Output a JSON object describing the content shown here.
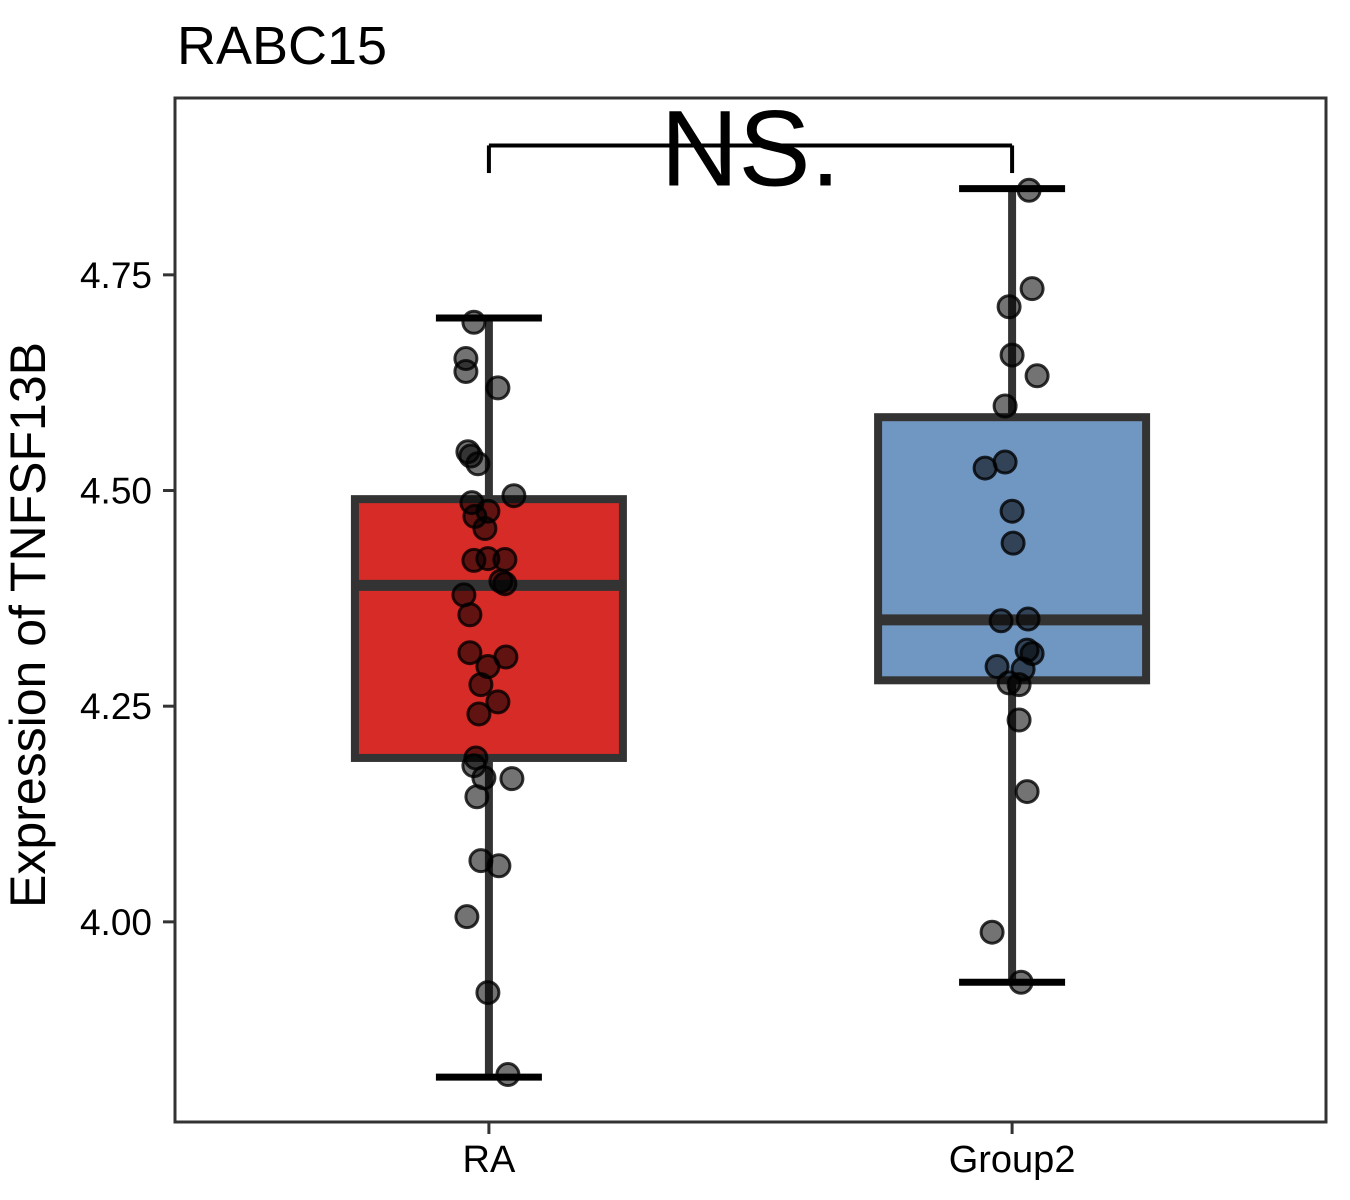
{
  "chart_data": {
    "type": "boxplot",
    "title": "RABC15",
    "ylabel": "Expression of TNFSF13B",
    "xlabel": "",
    "categories": [
      "RA",
      "Group2"
    ],
    "ylim": [
      3.768,
      4.955
    ],
    "grid": false,
    "legend": "none",
    "y_ticks": [
      {
        "value": 4.0,
        "label": "4.00"
      },
      {
        "value": 4.25,
        "label": "4.25"
      },
      {
        "value": 4.5,
        "label": "4.50"
      },
      {
        "value": 4.75,
        "label": "4.75"
      }
    ],
    "annotation": {
      "label": "NS.",
      "bar_value": 4.9,
      "drop_to_value": 4.868,
      "from_category": "RA",
      "to_category": "Group2"
    },
    "groups": [
      {
        "name": "RA",
        "fill": "#D62B27",
        "stats": {
          "whisker_low": 3.82,
          "q1": 4.19,
          "median": 4.39,
          "q3": 4.49,
          "whisker_high": 4.7
        },
        "points": [
          [
            -15,
            4.695
          ],
          [
            -23,
            4.653
          ],
          [
            -23,
            4.638
          ],
          [
            9,
            4.619
          ],
          [
            -21,
            4.545
          ],
          [
            -18,
            4.54
          ],
          [
            -11,
            4.531
          ],
          [
            25,
            4.494
          ],
          [
            -17,
            4.486
          ],
          [
            -1,
            4.476
          ],
          [
            -14,
            4.47
          ],
          [
            -4,
            4.456
          ],
          [
            -1,
            4.421
          ],
          [
            16,
            4.42
          ],
          [
            -15,
            4.419
          ],
          [
            12,
            4.395
          ],
          [
            16,
            4.392
          ],
          [
            -25,
            4.379
          ],
          [
            -19,
            4.356
          ],
          [
            -19,
            4.312
          ],
          [
            17,
            4.307
          ],
          [
            -1,
            4.296
          ],
          [
            -8,
            4.275
          ],
          [
            9,
            4.255
          ],
          [
            -10,
            4.241
          ],
          [
            -13,
            4.19
          ],
          [
            -15,
            4.181
          ],
          [
            -5,
            4.167
          ],
          [
            23,
            4.166
          ],
          [
            -12,
            4.145
          ],
          [
            -8,
            4.071
          ],
          [
            10,
            4.065
          ],
          [
            -22,
            4.006
          ],
          [
            -1,
            3.918
          ],
          [
            19,
            3.823
          ]
        ]
      },
      {
        "name": "Group2",
        "fill": "#7096C2",
        "stats": {
          "whisker_low": 3.93,
          "q1": 4.28,
          "median": 4.35,
          "q3": 4.585,
          "whisker_high": 4.85
        },
        "points": [
          [
            17,
            4.848
          ],
          [
            20,
            4.734
          ],
          [
            -3,
            4.713
          ],
          [
            0,
            4.657
          ],
          [
            25,
            4.633
          ],
          [
            -7,
            4.598
          ],
          [
            -7,
            4.533
          ],
          [
            -27,
            4.526
          ],
          [
            0,
            4.476
          ],
          [
            1,
            4.439
          ],
          [
            16,
            4.351
          ],
          [
            -11,
            4.349
          ],
          [
            15,
            4.315
          ],
          [
            20,
            4.311
          ],
          [
            -15,
            4.296
          ],
          [
            11,
            4.293
          ],
          [
            -3,
            4.277
          ],
          [
            7,
            4.275
          ],
          [
            7,
            4.234
          ],
          [
            15,
            4.151
          ],
          [
            -20,
            3.988
          ],
          [
            9,
            3.93
          ]
        ]
      }
    ],
    "style": {
      "panel_border": "#333333",
      "box_stroke": "#333333",
      "whisker_stroke": "#333333",
      "cap_stroke": "#000000",
      "bracket_stroke": "#000000",
      "point_color": "#000000",
      "text_color": "#000000",
      "background": "#ffffff"
    }
  }
}
